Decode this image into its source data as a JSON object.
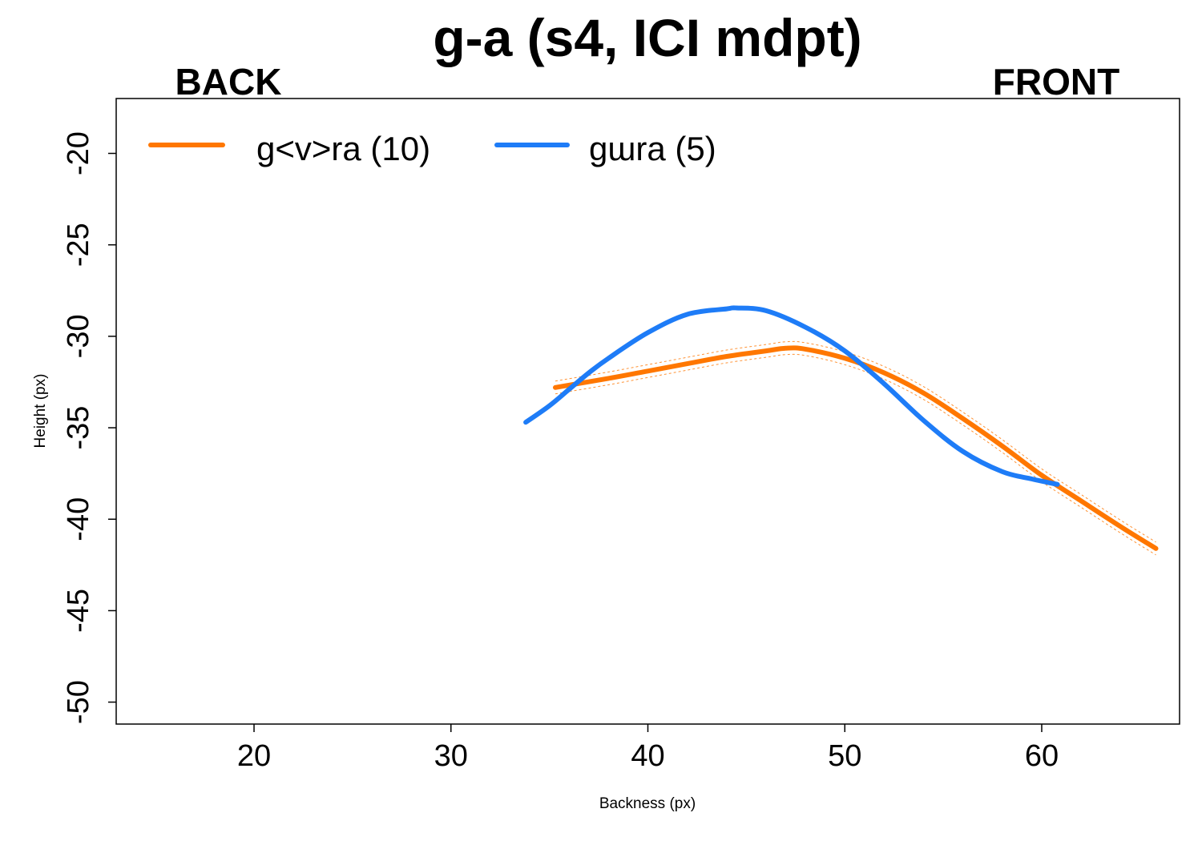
{
  "chart_data": {
    "type": "line",
    "title": "g-a (s4, ICI mdpt)",
    "side_labels": {
      "left": "BACK",
      "right": "FRONT"
    },
    "xlabel": "Backness (px)",
    "ylabel": "Height (px)",
    "xlim": [
      13,
      67
    ],
    "ylim": [
      -51.2,
      -17
    ],
    "x_ticks": [
      20,
      30,
      40,
      50,
      60
    ],
    "y_ticks": [
      -20,
      -25,
      -30,
      -35,
      -40,
      -45,
      -50
    ],
    "legend_position": "top-left",
    "grid": false,
    "series": [
      {
        "name": "g<v>ra (10)",
        "color": "#ff7700",
        "band": true,
        "x": [
          35.3,
          38,
          40,
          42,
          44,
          46,
          47,
          48,
          50,
          52,
          54,
          56,
          58,
          60,
          62,
          64,
          65.8
        ],
        "y": [
          -32.8,
          -32.3,
          -31.9,
          -31.5,
          -31.1,
          -30.8,
          -30.65,
          -30.7,
          -31.2,
          -32.0,
          -33.1,
          -34.5,
          -36.0,
          -37.6,
          -39.0,
          -40.4,
          -41.6
        ]
      },
      {
        "name": "gɯra (5)",
        "color": "#1e7cf7",
        "band": false,
        "x": [
          33.8,
          35,
          36,
          37,
          38,
          40,
          42,
          44,
          44.5,
          46,
          48,
          50,
          52,
          54,
          56,
          58,
          59.5,
          60.8
        ],
        "y": [
          -34.7,
          -33.8,
          -32.9,
          -32.0,
          -31.2,
          -29.8,
          -28.8,
          -28.5,
          -28.45,
          -28.6,
          -29.5,
          -30.8,
          -32.6,
          -34.6,
          -36.3,
          -37.4,
          -37.8,
          -38.1
        ]
      }
    ]
  }
}
